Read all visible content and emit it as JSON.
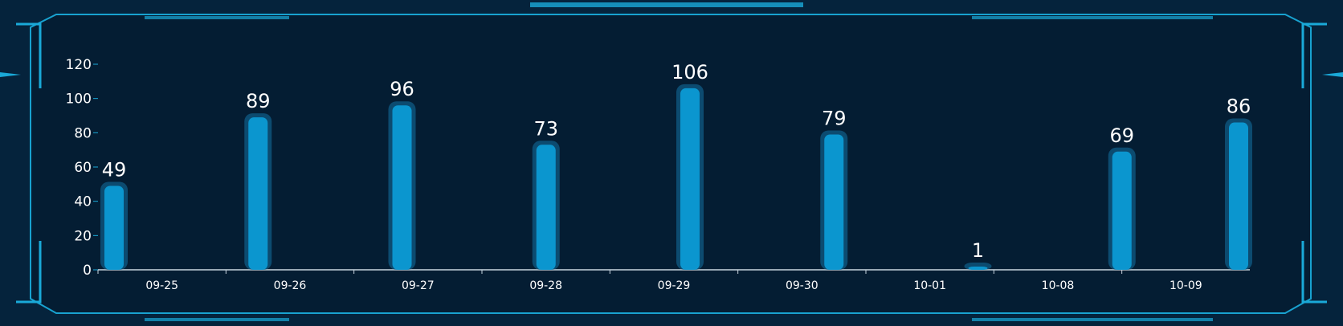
{
  "theme": {
    "background": "#05233c",
    "panel": "#041d33",
    "frame": "#1aa9d8",
    "bar": "#0b96cf",
    "bar_glow": "#0f5f8a",
    "text": "#ffffff"
  },
  "chart_data": {
    "type": "bar",
    "categories": [
      "09-25",
      "09-26",
      "09-27",
      "09-28",
      "09-29",
      "09-30",
      "10-01",
      "10-08",
      "10-09"
    ],
    "values": [
      49,
      89,
      96,
      73,
      106,
      79,
      1,
      69,
      86
    ],
    "yticks": [
      0,
      20,
      40,
      60,
      80,
      100,
      120
    ],
    "ylim": [
      0,
      120
    ],
    "title": "",
    "xlabel": "",
    "ylabel": "",
    "grid": false,
    "data_labels": true
  }
}
